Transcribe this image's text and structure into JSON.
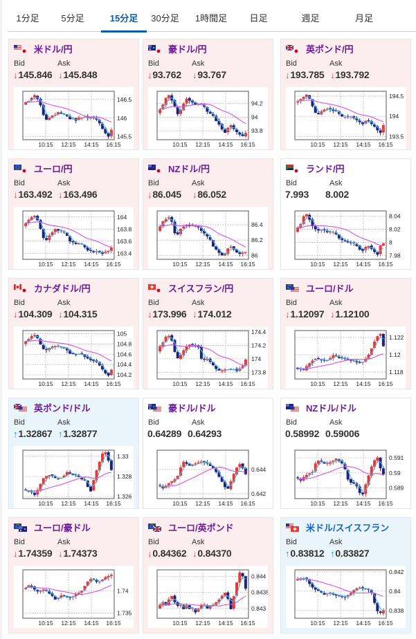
{
  "tabs": [
    {
      "label": "1分足",
      "active": false
    },
    {
      "label": "5分足",
      "active": false
    },
    {
      "label": "15分足",
      "active": true
    },
    {
      "label": "30分足",
      "active": false
    },
    {
      "label": "1時間足",
      "active": false
    },
    {
      "label": "日足",
      "active": false
    },
    {
      "label": "週足",
      "active": false
    },
    {
      "label": "月足",
      "active": false
    }
  ],
  "labels": {
    "bid": "Bid",
    "ask": "Ask"
  },
  "colors": {
    "bull": "#e53935",
    "bear": "#1a237e",
    "ma_short": "#4fb3e8",
    "ma_long": "#d64fe6",
    "down_bg": "#fcedee",
    "up_bg": "#eaf4fb",
    "down_arrow": "#e53935",
    "up_arrow": "#1e88e5",
    "title_purple": "#6a1b9a",
    "title_blue": "#1565c0"
  },
  "x_ticks": [
    "10:15",
    "12:15",
    "14:15",
    "16:15"
  ],
  "cards": [
    {
      "pair": "米ドル/円",
      "flag": [
        "us",
        "jp"
      ],
      "direction": "down",
      "bid": "145.846",
      "ask": "145.848",
      "chart_data": {
        "type": "candlestick",
        "y_ticks": [
          "146.5",
          "146",
          "145.5"
        ],
        "y_tick_values": [
          146.5,
          146.0,
          145.5
        ],
        "ylim": [
          145.42,
          146.72
        ],
        "path": [
          146.42,
          146.48,
          146.56,
          146.6,
          146.52,
          146.35,
          146.1,
          145.95,
          146.0,
          146.08,
          146.1,
          146.15,
          146.12,
          146.1,
          146.05,
          145.98,
          146.0,
          145.95,
          146.0,
          146.02,
          146.05,
          146.0,
          146.02,
          146.0,
          145.95,
          145.85,
          145.72,
          145.6,
          145.52,
          145.7
        ]
      }
    },
    {
      "pair": "豪ドル/円",
      "flag": [
        "au",
        "jp"
      ],
      "direction": "down",
      "bid": "93.762",
      "ask": "93.767",
      "chart_data": {
        "type": "candlestick",
        "y_ticks": [
          "94.2",
          "94",
          "93.8"
        ],
        "y_tick_values": [
          94.2,
          94.0,
          93.8
        ],
        "ylim": [
          93.67,
          94.38
        ],
        "path": [
          94.12,
          94.18,
          94.28,
          94.32,
          94.25,
          94.15,
          94.05,
          94.1,
          94.2,
          94.28,
          94.25,
          94.22,
          94.18,
          94.2,
          94.18,
          94.15,
          94.08,
          94.05,
          94.02,
          93.95,
          93.9,
          93.82,
          93.78,
          93.85,
          93.88,
          93.82,
          93.78,
          93.75,
          93.72,
          93.76
        ]
      }
    },
    {
      "pair": "英ポンド/円",
      "flag": [
        "gb",
        "jp"
      ],
      "direction": "down",
      "bid": "193.785",
      "ask": "193.792",
      "chart_data": {
        "type": "candlestick",
        "y_ticks": [
          "194.5",
          "194",
          "193.5"
        ],
        "y_tick_values": [
          194.5,
          194.0,
          193.5
        ],
        "ylim": [
          193.42,
          194.62
        ],
        "path": [
          194.38,
          194.42,
          194.48,
          194.52,
          194.42,
          194.25,
          194.08,
          194.05,
          194.12,
          194.18,
          194.2,
          194.18,
          194.15,
          194.12,
          194.05,
          193.98,
          194.0,
          193.98,
          194.0,
          193.95,
          193.9,
          193.85,
          193.82,
          193.9,
          193.88,
          193.8,
          193.75,
          193.65,
          193.6,
          193.78
        ]
      }
    },
    {
      "pair": "ユーロ/円",
      "flag": [
        "eu",
        "jp"
      ],
      "direction": "down",
      "bid": "163.492",
      "ask": "163.496",
      "chart_data": {
        "type": "candlestick",
        "y_ticks": [
          "164",
          "163.8",
          "163.6",
          "163.4"
        ],
        "y_tick_values": [
          164.0,
          163.8,
          163.6,
          163.4
        ],
        "ylim": [
          163.3,
          164.1
        ],
        "path": [
          163.9,
          163.95,
          164.0,
          164.02,
          163.95,
          163.8,
          163.65,
          163.62,
          163.7,
          163.75,
          163.8,
          163.78,
          163.76,
          163.74,
          163.68,
          163.6,
          163.58,
          163.55,
          163.56,
          163.54,
          163.5,
          163.46,
          163.44,
          163.42,
          163.44,
          163.42,
          163.4,
          163.42,
          163.44,
          163.49
        ]
      }
    },
    {
      "pair": "NZドル/円",
      "flag": [
        "nz",
        "jp"
      ],
      "direction": "down",
      "bid": "86.045",
      "ask": "86.052",
      "chart_data": {
        "type": "candlestick",
        "y_ticks": [
          "86.4",
          "86.2",
          "86"
        ],
        "y_tick_values": [
          86.4,
          86.2,
          86.0
        ],
        "ylim": [
          85.95,
          86.58
        ],
        "path": [
          86.38,
          86.44,
          86.48,
          86.5,
          86.44,
          86.3,
          86.28,
          86.35,
          86.38,
          86.4,
          86.4,
          86.38,
          86.38,
          86.36,
          86.32,
          86.28,
          86.24,
          86.2,
          86.12,
          86.08,
          86.04,
          86.0,
          86.02,
          86.1,
          86.12,
          86.08,
          86.04,
          86.02,
          86.04,
          86.05
        ]
      }
    },
    {
      "pair": "ランド/円",
      "flag": [
        "za",
        "jp"
      ],
      "direction": "flat",
      "bid": "7.993",
      "ask": "8.002",
      "chart_data": {
        "type": "candlestick",
        "y_ticks": [
          "8.04",
          "8.02",
          "8",
          "7.98"
        ],
        "y_tick_values": [
          8.04,
          8.02,
          8.0,
          7.98
        ],
        "ylim": [
          7.974,
          8.048
        ],
        "path": [
          8.022,
          8.028,
          8.04,
          8.042,
          8.035,
          8.025,
          8.02,
          8.019,
          8.02,
          8.018,
          8.016,
          8.016,
          8.015,
          8.012,
          8.006,
          8.003,
          8.002,
          8.0,
          8.0,
          7.998,
          7.995,
          7.99,
          7.988,
          7.992,
          7.995,
          7.99,
          7.985,
          7.982,
          7.995,
          7.998
        ]
      }
    },
    {
      "pair": "カナダドル/円",
      "flag": [
        "ca",
        "jp"
      ],
      "direction": "down",
      "bid": "104.309",
      "ask": "104.315",
      "chart_data": {
        "type": "candlestick",
        "y_ticks": [
          "105",
          "104.8",
          "104.6",
          "104.4",
          "104.2"
        ],
        "y_tick_values": [
          105.0,
          104.8,
          104.6,
          104.4,
          104.2
        ],
        "ylim": [
          104.12,
          105.06
        ],
        "path": [
          104.85,
          104.9,
          104.95,
          104.97,
          104.9,
          104.78,
          104.7,
          104.68,
          104.72,
          104.74,
          104.76,
          104.75,
          104.74,
          104.72,
          104.68,
          104.62,
          104.6,
          104.6,
          104.62,
          104.6,
          104.56,
          104.52,
          104.5,
          104.48,
          104.45,
          104.38,
          104.3,
          104.24,
          104.2,
          104.3
        ]
      }
    },
    {
      "pair": "スイスフラン/円",
      "flag": [
        "ch",
        "jp"
      ],
      "direction": "down",
      "bid": "173.996",
      "ask": "174.012",
      "chart_data": {
        "type": "candlestick",
        "y_ticks": [
          "174.4",
          "174.2",
          "174",
          "173.8"
        ],
        "y_tick_values": [
          174.4,
          174.2,
          174.0,
          173.8
        ],
        "ylim": [
          173.7,
          174.42
        ],
        "path": [
          174.18,
          174.25,
          174.32,
          174.35,
          174.28,
          174.1,
          174.0,
          174.05,
          174.12,
          174.18,
          174.22,
          174.2,
          174.2,
          174.18,
          174.0,
          173.98,
          174.0,
          173.95,
          173.9,
          173.85,
          173.82,
          173.82,
          173.84,
          173.85,
          173.84,
          173.85,
          173.82,
          173.86,
          173.9,
          173.99
        ]
      }
    },
    {
      "pair": "ユーロ/ドル",
      "flag": [
        "eu",
        "us"
      ],
      "direction": "down",
      "bid": "1.12097",
      "ask": "1.12100",
      "chart_data": {
        "type": "candlestick",
        "y_ticks": [
          "1.122",
          "1.12",
          "1.118"
        ],
        "y_tick_values": [
          1.122,
          1.12,
          1.118
        ],
        "ylim": [
          1.1172,
          1.1228
        ],
        "path": [
          1.1184,
          1.1183,
          1.1182,
          1.1186,
          1.119,
          1.1194,
          1.1196,
          1.1195,
          1.1194,
          1.1193,
          1.1194,
          1.1196,
          1.1199,
          1.1198,
          1.1197,
          1.1196,
          1.1195,
          1.1194,
          1.1193,
          1.1193,
          1.1192,
          1.1191,
          1.1192,
          1.1195,
          1.12,
          1.1208,
          1.1216,
          1.1222,
          1.1224,
          1.121
        ]
      }
    },
    {
      "pair": "英ポンド/ドル",
      "flag": [
        "gb",
        "us"
      ],
      "direction": "up",
      "bid": "1.32867",
      "ask": "1.32877",
      "chart_data": {
        "type": "candlestick",
        "y_ticks": [
          "1.33",
          "1.328",
          "1.326"
        ],
        "y_tick_values": [
          1.33,
          1.328,
          1.326
        ],
        "ylim": [
          1.3258,
          1.3306
        ],
        "path": [
          1.3266,
          1.3265,
          1.3264,
          1.3262,
          1.3266,
          1.3272,
          1.3278,
          1.328,
          1.3282,
          1.328,
          1.3278,
          1.3278,
          1.3279,
          1.3281,
          1.3284,
          1.3283,
          1.3282,
          1.3281,
          1.3279,
          1.3277,
          1.3276,
          1.327,
          1.3266,
          1.3276,
          1.3286,
          1.3294,
          1.3302,
          1.3304,
          1.3296,
          1.3287
        ]
      }
    },
    {
      "pair": "豪ドル/ドル",
      "flag": [
        "au",
        "us"
      ],
      "direction": "flat",
      "bid": "0.64289",
      "ask": "0.64293",
      "chart_data": {
        "type": "candlestick",
        "y_ticks": [
          "0.644",
          "0.642"
        ],
        "y_tick_values": [
          0.644,
          0.642
        ],
        "ylim": [
          0.6416,
          0.6456
        ],
        "path": [
          0.6426,
          0.6425,
          0.6427,
          0.6429,
          0.643,
          0.6432,
          0.6435,
          0.6442,
          0.6446,
          0.6445,
          0.6443,
          0.6444,
          0.6445,
          0.6446,
          0.6447,
          0.6446,
          0.6445,
          0.6443,
          0.6441,
          0.6438,
          0.6434,
          0.643,
          0.6426,
          0.6424,
          0.643,
          0.6436,
          0.6442,
          0.6445,
          0.6441,
          0.6436
        ]
      }
    },
    {
      "pair": "NZドル/ドル",
      "flag": [
        "nz",
        "us"
      ],
      "direction": "flat",
      "bid": "0.58992",
      "ask": "0.59006",
      "chart_data": {
        "type": "candlestick",
        "y_ticks": [
          "0.591",
          "0.59",
          "0.589"
        ],
        "y_tick_values": [
          0.591,
          0.59,
          0.589
        ],
        "ylim": [
          0.5883,
          0.5915
        ],
        "path": [
          0.5896,
          0.5895,
          0.5897,
          0.5899,
          0.59,
          0.5901,
          0.5906,
          0.5908,
          0.5907,
          0.5906,
          0.5906,
          0.5907,
          0.5908,
          0.5909,
          0.5908,
          0.5906,
          0.5902,
          0.5896,
          0.5894,
          0.5893,
          0.5891,
          0.5887,
          0.5886,
          0.5892,
          0.5898,
          0.5904,
          0.5908,
          0.591,
          0.5903,
          0.5899
        ]
      }
    },
    {
      "pair": "ユーロ/豪ドル",
      "flag": [
        "eu",
        "au"
      ],
      "direction": "down",
      "bid": "1.74359",
      "ask": "1.74373",
      "chart_data": {
        "type": "candlestick",
        "y_ticks": [
          "1.74",
          "1.735"
        ],
        "y_tick_values": [
          1.74,
          1.735
        ],
        "ylim": [
          1.7338,
          1.7448
        ],
        "path": [
          1.7408,
          1.7412,
          1.741,
          1.7402,
          1.7398,
          1.74,
          1.7402,
          1.74,
          1.7395,
          1.7388,
          1.7382,
          1.7385,
          1.739,
          1.7388,
          1.7386,
          1.7385,
          1.7388,
          1.7392,
          1.7396,
          1.7402,
          1.7412,
          1.7422,
          1.7428,
          1.7426,
          1.742,
          1.7422,
          1.7426,
          1.743,
          1.7434,
          1.7436
        ]
      }
    },
    {
      "pair": "ユーロ/英ポンド",
      "flag": [
        "eu",
        "gb"
      ],
      "direction": "down",
      "bid": "0.84362",
      "ask": "0.84370",
      "chart_data": {
        "type": "candlestick",
        "y_ticks": [
          "0.844",
          "0.8435",
          "0.843"
        ],
        "y_tick_values": [
          0.844,
          0.8435,
          0.843
        ],
        "ylim": [
          0.8427,
          0.8442
        ],
        "path": [
          0.8431,
          0.8432,
          0.8431,
          0.8433,
          0.8434,
          0.8432,
          0.8431,
          0.8431,
          0.843,
          0.8431,
          0.843,
          0.843,
          0.8429,
          0.843,
          0.8431,
          0.8431,
          0.843,
          0.8431,
          0.8431,
          0.8432,
          0.8433,
          0.8434,
          0.8435,
          0.8433,
          0.843,
          0.8434,
          0.8438,
          0.8441,
          0.844,
          0.8436
        ]
      }
    },
    {
      "pair": "米ドル/スイスフラン",
      "flag": [
        "us",
        "ch"
      ],
      "direction": "up",
      "bid": "0.83812",
      "ask": "0.83827",
      "chart_data": {
        "type": "candlestick",
        "y_ticks": [
          "0.842",
          "0.84",
          "0.838"
        ],
        "y_tick_values": [
          0.842,
          0.84,
          0.838
        ],
        "ylim": [
          0.8372,
          0.8422
        ],
        "path": [
          0.8412,
          0.8413,
          0.8414,
          0.8412,
          0.8408,
          0.8404,
          0.8402,
          0.84,
          0.8398,
          0.8397,
          0.8398,
          0.8398,
          0.8397,
          0.8396,
          0.8395,
          0.8394,
          0.8394,
          0.8396,
          0.8398,
          0.8401,
          0.8403,
          0.8404,
          0.8403,
          0.8402,
          0.8401,
          0.8398,
          0.8388,
          0.8379,
          0.8377,
          0.8381
        ]
      }
    }
  ]
}
